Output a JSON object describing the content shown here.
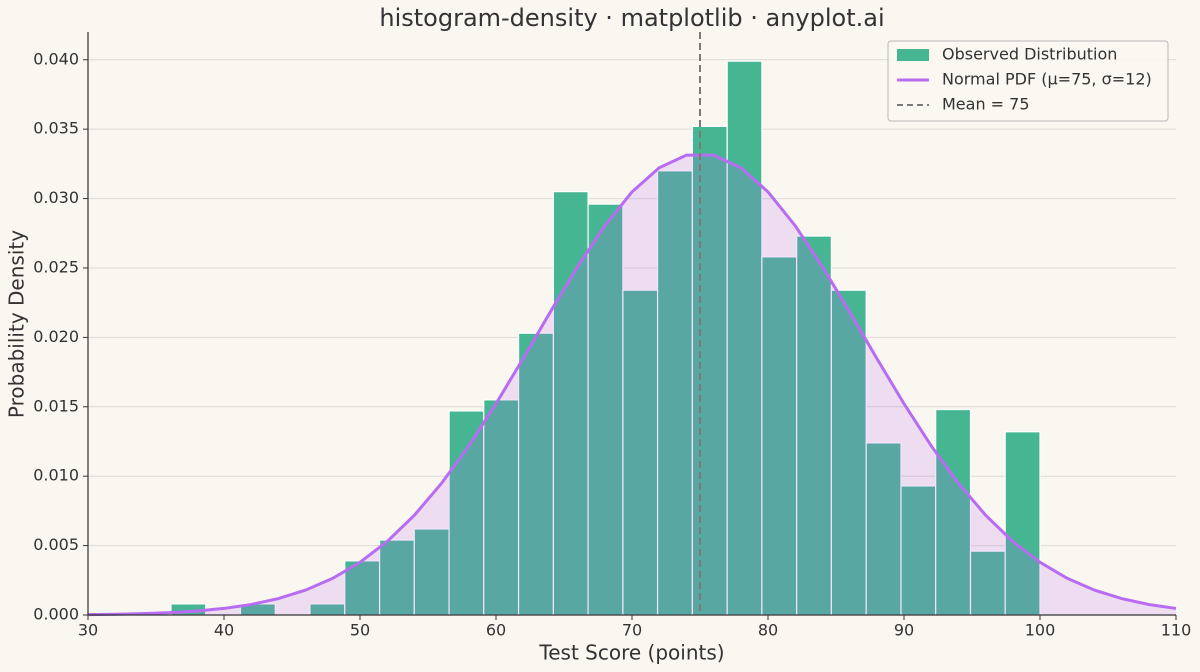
{
  "chart_data": {
    "type": "histogram",
    "title": "histogram-density · matplotlib · anyplot.ai",
    "xlabel": "Test Score (points)",
    "ylabel": "Probability Density",
    "name": "Observed Distribution",
    "color": "#45b592",
    "bins": [
      36.1,
      38.66,
      41.21,
      43.77,
      46.32,
      48.88,
      51.44,
      53.99,
      56.55,
      59.1,
      61.66,
      64.22,
      66.77,
      69.33,
      71.88,
      74.44,
      77.0,
      79.55,
      82.11,
      84.66,
      87.22,
      89.78,
      92.33,
      94.89,
      97.44,
      100.0
    ],
    "values": [
      0.0008,
      0,
      0.0008,
      0,
      0.0008,
      0.0039,
      0.0054,
      0.0062,
      0.0147,
      0.0155,
      0.0203,
      0.0305,
      0.0296,
      0.0234,
      0.032,
      0.0352,
      0.0399,
      0.0258,
      0.0273,
      0.0234,
      0.0124,
      0.0093,
      0.0148,
      0.0046,
      0.0132
    ],
    "curve": {
      "name": "Normal PDF (μ=75, σ=12)",
      "color": "#b86cf2",
      "x": [
        30,
        32,
        34,
        36,
        38,
        40,
        42,
        44,
        46,
        48,
        50,
        52,
        54,
        56,
        58,
        60,
        62,
        64,
        66,
        68,
        70,
        72,
        74,
        76,
        78,
        80,
        82,
        84,
        86,
        88,
        90,
        92,
        94,
        96,
        98,
        100,
        102,
        104,
        106,
        108,
        110
      ],
      "values": [
        2.94e-05,
        5.41e-05,
        9.69e-05,
        0.000169,
        0.000287,
        0.000473,
        0.000758,
        0.001181,
        0.001793,
        0.002645,
        0.003797,
        0.005297,
        0.007191,
        0.009492,
        0.012188,
        0.01522,
        0.018488,
        0.021842,
        0.025094,
        0.028045,
        0.030482,
        0.032222,
        0.03313,
        0.03313,
        0.032222,
        0.030482,
        0.028045,
        0.025094,
        0.021842,
        0.018488,
        0.01522,
        0.012188,
        0.009492,
        0.007191,
        0.005297,
        0.003797,
        0.002645,
        0.001793,
        0.001181,
        0.000758,
        0.000473
      ]
    },
    "mean_line": {
      "name": "Mean = 75",
      "value": 75,
      "color": "#7a7a7a"
    },
    "xlim": [
      30,
      110
    ],
    "ylim": [
      0,
      0.042
    ],
    "xticks": [
      30,
      40,
      50,
      60,
      70,
      80,
      90,
      100,
      110
    ],
    "yticks": [
      {
        "value": 0,
        "label": "0.000"
      },
      {
        "value": 0.005,
        "label": "0.005"
      },
      {
        "value": 0.01,
        "label": "0.010"
      },
      {
        "value": 0.015,
        "label": "0.015"
      },
      {
        "value": 0.02,
        "label": "0.020"
      },
      {
        "value": 0.025,
        "label": "0.025"
      },
      {
        "value": 0.03,
        "label": "0.030"
      },
      {
        "value": 0.035,
        "label": "0.035"
      },
      {
        "value": 0.04,
        "label": "0.040"
      }
    ],
    "grid": true,
    "legend": "upper right"
  }
}
